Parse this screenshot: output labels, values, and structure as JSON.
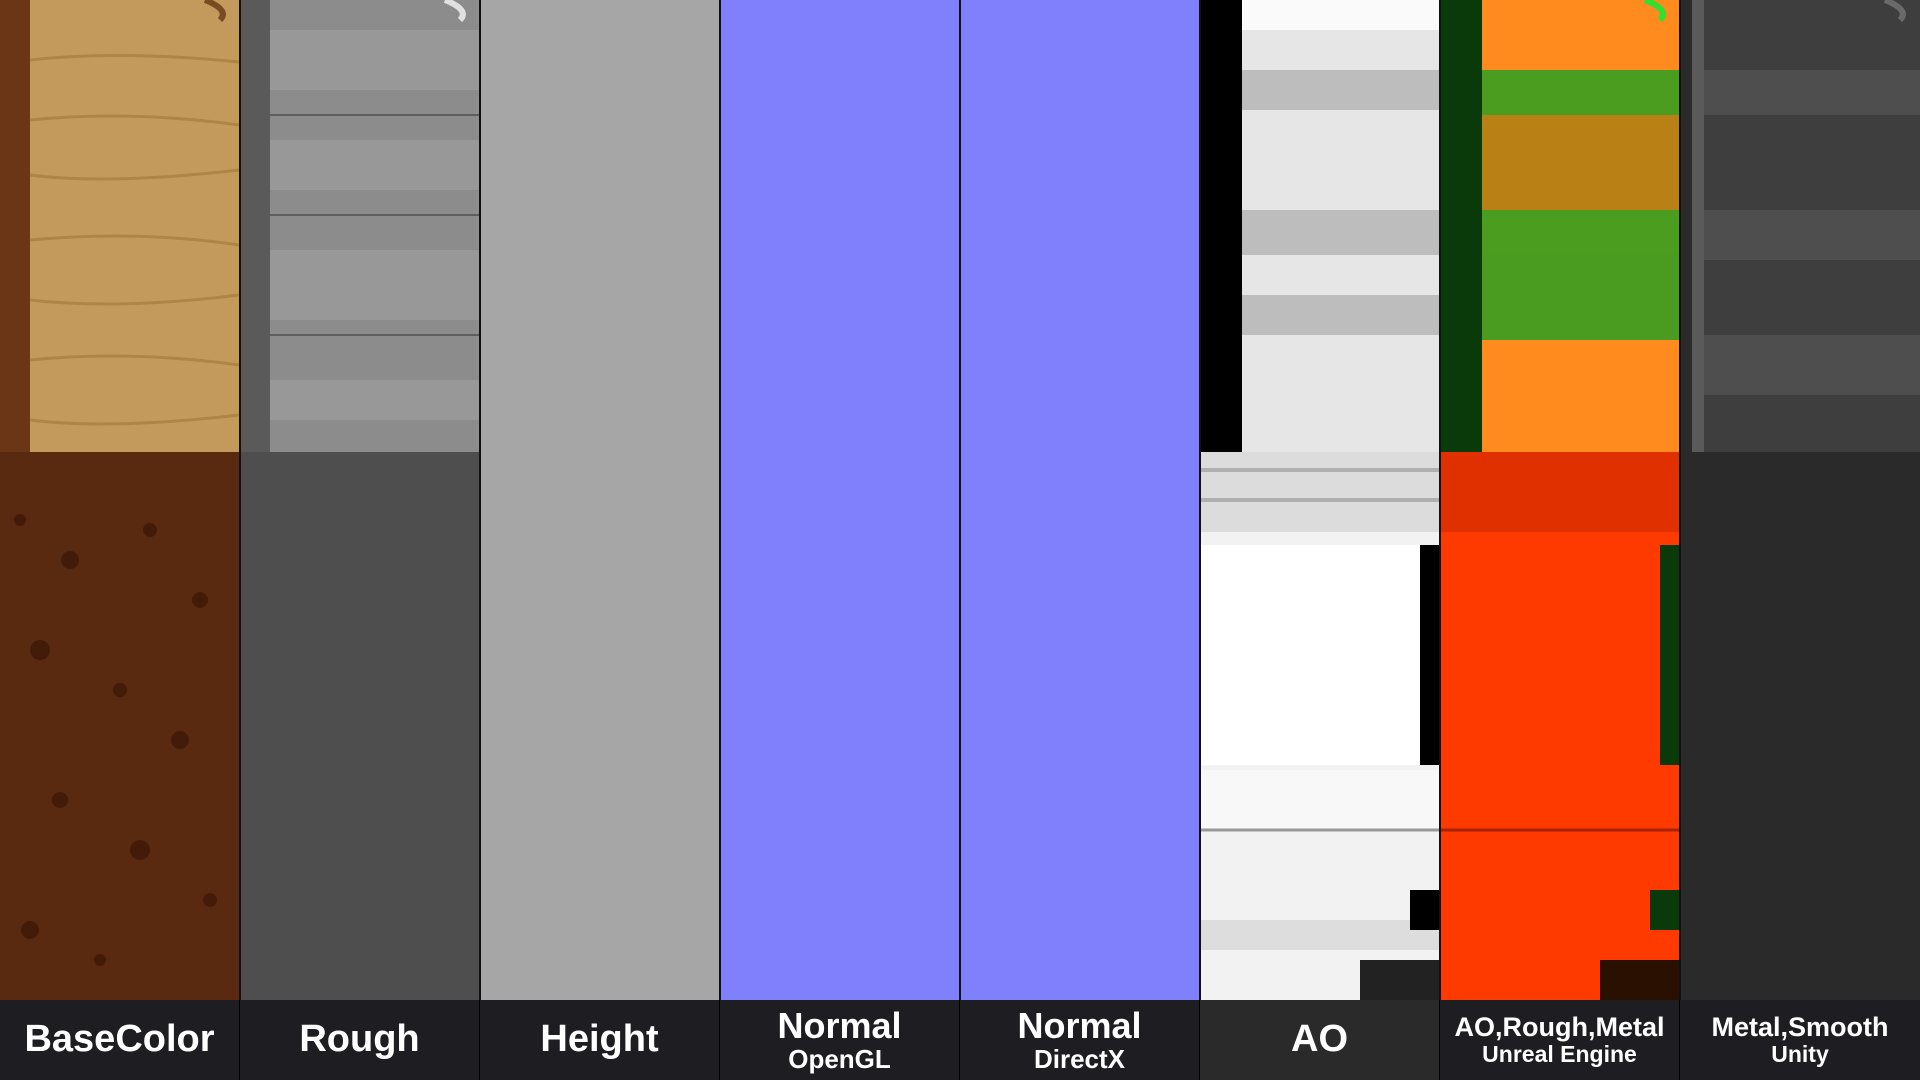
{
  "strips": [
    {
      "id": "basecolor",
      "title": "BaseColor",
      "subtitle": ""
    },
    {
      "id": "rough",
      "title": "Rough",
      "subtitle": ""
    },
    {
      "id": "height",
      "title": "Height",
      "subtitle": ""
    },
    {
      "id": "normal-opengl",
      "title": "Normal",
      "subtitle": "OpenGL"
    },
    {
      "id": "normal-directx",
      "title": "Normal",
      "subtitle": "DirectX"
    },
    {
      "id": "ao",
      "title": "AO",
      "subtitle": ""
    },
    {
      "id": "ao-rough-metal",
      "title": "AO,Rough,Metal",
      "subtitle": "Unreal Engine"
    },
    {
      "id": "metal-smooth",
      "title": "Metal,Smooth",
      "subtitle": "Unity"
    }
  ],
  "colors": {
    "caption_bg": "#1e1e22",
    "normal_blue": "#8080fc",
    "wood_light": "#c49a5c",
    "wood_dark": "#5a2a10",
    "rough_gray": "#6a6a6a",
    "height_gray": "#a6a6a6",
    "ao_white": "#f2f2f2",
    "arm_orange": "#ff8a1e",
    "arm_red": "#ff3a00",
    "arm_green": "#2aa020",
    "metal_dark": "#2a2a2a"
  }
}
